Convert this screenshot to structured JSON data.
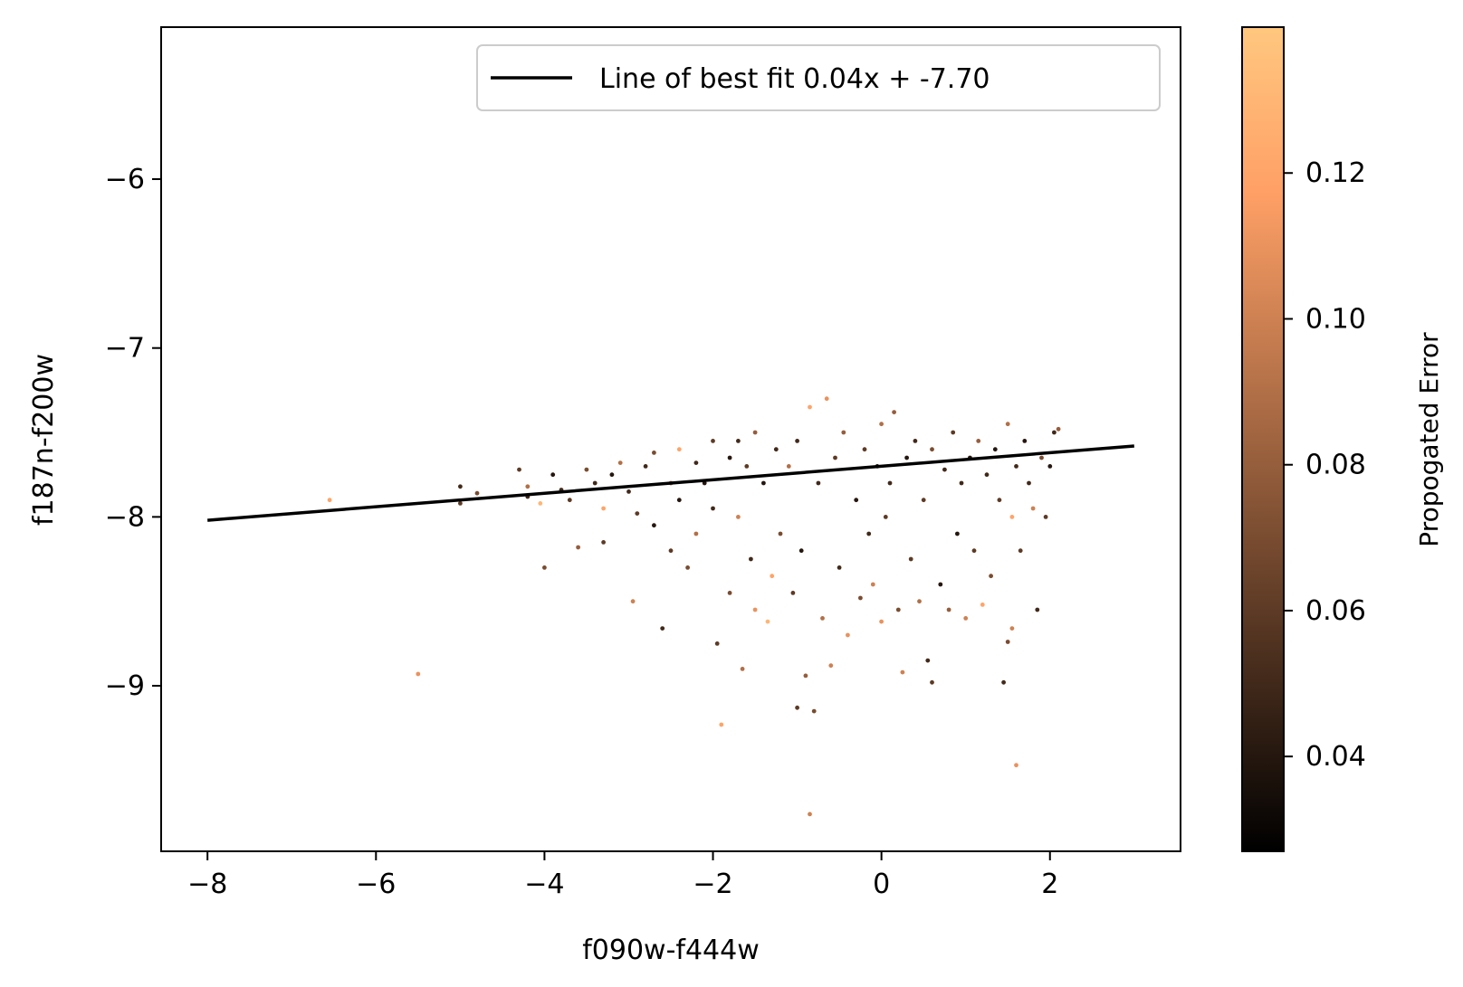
{
  "chart_data": {
    "type": "scatter",
    "xlabel": "f090w-f444w",
    "ylabel": "f187n-f200w",
    "xlim": [
      -8.55,
      3.55
    ],
    "ylim": [
      -9.98,
      -5.1
    ],
    "x_ticks": [
      -8,
      -6,
      -4,
      -2,
      0,
      2
    ],
    "x_tick_labels": [
      "−8",
      "−6",
      "−4",
      "−2",
      "0",
      "2"
    ],
    "y_ticks": [
      -9,
      -8,
      -7,
      -6
    ],
    "y_tick_labels": [
      "−9",
      "−8",
      "−7",
      "−6"
    ],
    "grid": false,
    "legend": {
      "placement": "top-right",
      "entries": [
        {
          "label": "Line of best fit 0.04x + -7.70",
          "color": "#000000"
        }
      ]
    },
    "fit_line": {
      "slope": 0.04,
      "intercept": -7.7,
      "x_range": [
        -8,
        3
      ],
      "color": "#000000"
    },
    "colorbar": {
      "label": "Propogated Error",
      "colormap": "copper",
      "range": [
        0.027,
        0.14
      ],
      "ticks": [
        0.04,
        0.06,
        0.08,
        0.1,
        0.12
      ],
      "tick_labels": [
        "0.04",
        "0.06",
        "0.08",
        "0.10",
        "0.12"
      ]
    },
    "points": [
      [
        -6.55,
        -7.9,
        0.12
      ],
      [
        -5.5,
        -8.93,
        0.11
      ],
      [
        -5.0,
        -7.82,
        0.05
      ],
      [
        -5.0,
        -7.92,
        0.06
      ],
      [
        -4.8,
        -7.86,
        0.07
      ],
      [
        -4.3,
        -7.72,
        0.06
      ],
      [
        -4.2,
        -7.82,
        0.09
      ],
      [
        -4.2,
        -7.88,
        0.05
      ],
      [
        -4.05,
        -7.92,
        0.13
      ],
      [
        -4.0,
        -8.3,
        0.07
      ],
      [
        -3.9,
        -7.75,
        0.04
      ],
      [
        -3.8,
        -7.84,
        0.05
      ],
      [
        -3.7,
        -7.9,
        0.06
      ],
      [
        -3.6,
        -8.18,
        0.08
      ],
      [
        -3.5,
        -7.72,
        0.07
      ],
      [
        -3.4,
        -7.8,
        0.05
      ],
      [
        -3.3,
        -7.95,
        0.12
      ],
      [
        -3.3,
        -8.15,
        0.06
      ],
      [
        -3.2,
        -7.75,
        0.04
      ],
      [
        -3.1,
        -7.68,
        0.09
      ],
      [
        -3.0,
        -7.85,
        0.05
      ],
      [
        -2.95,
        -8.5,
        0.1
      ],
      [
        -2.9,
        -7.98,
        0.06
      ],
      [
        -2.8,
        -7.7,
        0.05
      ],
      [
        -2.7,
        -7.62,
        0.07
      ],
      [
        -2.7,
        -8.05,
        0.04
      ],
      [
        -2.6,
        -8.66,
        0.05
      ],
      [
        -2.5,
        -7.8,
        0.08
      ],
      [
        -2.5,
        -8.2,
        0.06
      ],
      [
        -2.4,
        -7.6,
        0.12
      ],
      [
        -2.4,
        -7.9,
        0.04
      ],
      [
        -2.3,
        -8.3,
        0.07
      ],
      [
        -2.2,
        -7.68,
        0.05
      ],
      [
        -2.2,
        -8.1,
        0.09
      ],
      [
        -2.1,
        -7.8,
        0.04
      ],
      [
        -2.0,
        -7.55,
        0.06
      ],
      [
        -2.0,
        -7.95,
        0.05
      ],
      [
        -1.95,
        -8.75,
        0.06
      ],
      [
        -1.9,
        -9.23,
        0.12
      ],
      [
        -1.8,
        -7.65,
        0.04
      ],
      [
        -1.8,
        -8.45,
        0.07
      ],
      [
        -1.7,
        -7.55,
        0.05
      ],
      [
        -1.7,
        -8.0,
        0.1
      ],
      [
        -1.65,
        -8.9,
        0.09
      ],
      [
        -1.6,
        -7.7,
        0.06
      ],
      [
        -1.55,
        -8.25,
        0.05
      ],
      [
        -1.5,
        -7.5,
        0.08
      ],
      [
        -1.5,
        -8.55,
        0.11
      ],
      [
        -1.4,
        -7.8,
        0.04
      ],
      [
        -1.35,
        -8.62,
        0.13
      ],
      [
        -1.3,
        -8.35,
        0.12
      ],
      [
        -1.25,
        -7.6,
        0.05
      ],
      [
        -1.2,
        -8.1,
        0.07
      ],
      [
        -1.1,
        -7.7,
        0.09
      ],
      [
        -1.05,
        -8.45,
        0.06
      ],
      [
        -1.0,
        -9.13,
        0.06
      ],
      [
        -1.0,
        -7.55,
        0.05
      ],
      [
        -0.95,
        -8.2,
        0.04
      ],
      [
        -0.9,
        -8.94,
        0.08
      ],
      [
        -0.85,
        -7.35,
        0.12
      ],
      [
        -0.85,
        -9.76,
        0.1
      ],
      [
        -0.8,
        -9.15,
        0.07
      ],
      [
        -0.75,
        -7.8,
        0.05
      ],
      [
        -0.7,
        -8.6,
        0.09
      ],
      [
        -0.65,
        -7.3,
        0.11
      ],
      [
        -0.6,
        -8.88,
        0.1
      ],
      [
        -0.55,
        -7.65,
        0.06
      ],
      [
        -0.5,
        -8.3,
        0.05
      ],
      [
        -0.45,
        -7.5,
        0.08
      ],
      [
        -0.4,
        -8.7,
        0.11
      ],
      [
        -0.3,
        -7.9,
        0.04
      ],
      [
        -0.25,
        -8.48,
        0.07
      ],
      [
        -0.2,
        -7.6,
        0.06
      ],
      [
        -0.15,
        -8.1,
        0.05
      ],
      [
        -0.1,
        -8.4,
        0.1
      ],
      [
        -0.05,
        -7.7,
        0.04
      ],
      [
        0.0,
        -7.45,
        0.09
      ],
      [
        0.0,
        -8.62,
        0.11
      ],
      [
        0.05,
        -8.0,
        0.06
      ],
      [
        0.1,
        -7.8,
        0.05
      ],
      [
        0.15,
        -7.38,
        0.08
      ],
      [
        0.2,
        -8.55,
        0.07
      ],
      [
        0.25,
        -8.92,
        0.1
      ],
      [
        0.3,
        -7.65,
        0.04
      ],
      [
        0.35,
        -8.25,
        0.06
      ],
      [
        0.4,
        -7.55,
        0.05
      ],
      [
        0.45,
        -8.5,
        0.09
      ],
      [
        0.5,
        -7.9,
        0.06
      ],
      [
        0.55,
        -8.85,
        0.05
      ],
      [
        0.6,
        -8.98,
        0.06
      ],
      [
        0.6,
        -7.6,
        0.07
      ],
      [
        0.7,
        -8.4,
        0.04
      ],
      [
        0.75,
        -7.72,
        0.05
      ],
      [
        0.8,
        -8.55,
        0.08
      ],
      [
        0.85,
        -7.5,
        0.06
      ],
      [
        0.9,
        -8.1,
        0.04
      ],
      [
        0.95,
        -7.8,
        0.05
      ],
      [
        1.0,
        -8.6,
        0.1
      ],
      [
        1.05,
        -7.65,
        0.04
      ],
      [
        1.1,
        -8.2,
        0.06
      ],
      [
        1.15,
        -7.55,
        0.08
      ],
      [
        1.2,
        -8.52,
        0.12
      ],
      [
        1.25,
        -7.75,
        0.05
      ],
      [
        1.3,
        -8.35,
        0.07
      ],
      [
        1.35,
        -7.6,
        0.04
      ],
      [
        1.4,
        -7.9,
        0.06
      ],
      [
        1.45,
        -8.98,
        0.05
      ],
      [
        1.5,
        -7.45,
        0.09
      ],
      [
        1.5,
        -8.74,
        0.07
      ],
      [
        1.55,
        -8.0,
        0.12
      ],
      [
        1.55,
        -8.66,
        0.1
      ],
      [
        1.6,
        -9.47,
        0.11
      ],
      [
        1.6,
        -7.7,
        0.05
      ],
      [
        1.65,
        -8.2,
        0.06
      ],
      [
        1.7,
        -7.55,
        0.04
      ],
      [
        1.75,
        -7.8,
        0.05
      ],
      [
        1.8,
        -7.95,
        0.1
      ],
      [
        1.85,
        -8.55,
        0.05
      ],
      [
        1.9,
        -7.65,
        0.07
      ],
      [
        1.95,
        -8.0,
        0.06
      ],
      [
        2.0,
        -7.7,
        0.04
      ],
      [
        2.05,
        -7.5,
        0.05
      ],
      [
        2.1,
        -7.48,
        0.08
      ]
    ]
  }
}
